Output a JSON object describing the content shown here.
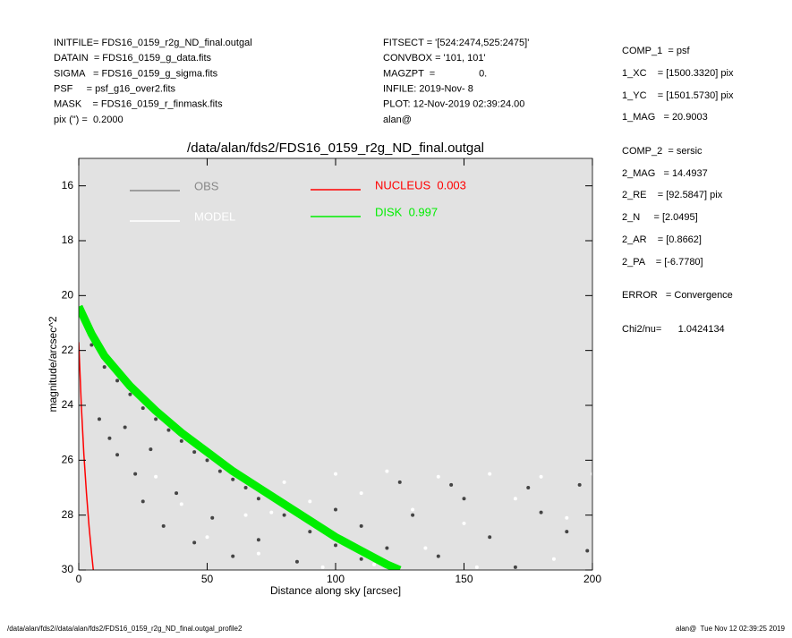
{
  "header": {
    "left": [
      "INITFILE= FDS16_0159_r2g_ND_final.outgal",
      "DATAIN  = FDS16_0159_g_data.fits",
      "SIGMA   = FDS16_0159_g_sigma.fits",
      "PSF     = psf_g16_over2.fits",
      "MASK    = FDS16_0159_r_finmask.fits",
      "pix (\") =  0.2000"
    ],
    "middle": [
      "FITSECT = '[524:2474,525:2475]'",
      "CONVBOX = '101, 101'",
      "MAGZPT  =                0.",
      "INFILE: 2019-Nov- 8",
      "PLOT: 12-Nov-2019 02:39:24.00",
      "alan@"
    ]
  },
  "side_panel": [
    "COMP_1  = psf",
    "1_XC    = [1500.3320] pix",
    "1_YC    = [1501.5730] pix",
    "1_MAG   = 20.9003",
    "COMP_2  = sersic",
    "2_MAG   = 14.4937",
    "2_RE    = [92.5847] pix",
    "2_N     = [2.0495]",
    "2_AR    = [0.8662]",
    "2_PA    = [-6.7780]",
    "ERROR   = Convergence",
    "Chi2/nu=      1.0424134"
  ],
  "footer": {
    "left": "/data/alan/fds2//data/alan/fds2/FDS16_0159_r2g_ND_final.outgal_profile2",
    "right": "alan@  Tue Nov 12 02:39:25 2019"
  },
  "chart_data": {
    "type": "scatter",
    "title": "/data/alan/fds2/FDS16_0159_r2g_ND_final.outgal",
    "x_label": "Distance along sky [arcsec]",
    "y_label": "magnitude/arcsec^2",
    "xlim": [
      0,
      200
    ],
    "ylim": [
      30,
      15
    ],
    "xticks": [
      0,
      50,
      100,
      150,
      200
    ],
    "yticks": [
      16,
      18,
      20,
      22,
      24,
      26,
      28,
      30
    ],
    "background": "#e2e2e2",
    "series": [
      {
        "name": "OBS",
        "color": "#444444",
        "legend_color": "#888888",
        "mode": "markers",
        "x": [
          5,
          10,
          15,
          20,
          25,
          30,
          35,
          40,
          45,
          50,
          55,
          60,
          65,
          70,
          80,
          90,
          100,
          110,
          8,
          12,
          15,
          18,
          22,
          25,
          28,
          33,
          38,
          45,
          52,
          60,
          70,
          85,
          100,
          110,
          120,
          130,
          140,
          150,
          160,
          170,
          180,
          190,
          198,
          125,
          145,
          175,
          195
        ],
        "values": [
          21.8,
          22.6,
          23.1,
          23.6,
          24.1,
          24.5,
          24.9,
          25.3,
          25.7,
          26.0,
          26.4,
          26.7,
          27.0,
          27.4,
          28.0,
          28.6,
          29.1,
          29.6,
          24.5,
          25.2,
          25.8,
          24.8,
          26.5,
          27.5,
          25.6,
          28.4,
          27.2,
          29.0,
          28.1,
          29.5,
          28.9,
          29.7,
          27.8,
          28.4,
          29.2,
          28.0,
          29.5,
          27.4,
          28.8,
          29.9,
          27.9,
          28.6,
          29.3,
          26.8,
          26.9,
          27.0,
          26.9
        ]
      },
      {
        "name": "MODEL",
        "color": "#ffffff",
        "mode": "markers",
        "x": [
          30,
          40,
          50,
          60,
          70,
          80,
          90,
          100,
          110,
          120,
          130,
          140,
          150,
          160,
          170,
          180,
          190,
          200,
          115,
          135,
          155,
          185,
          95,
          65,
          75
        ],
        "values": [
          26.6,
          27.6,
          28.8,
          26.4,
          29.4,
          26.8,
          27.5,
          26.5,
          27.2,
          26.4,
          27.8,
          26.6,
          28.3,
          26.5,
          27.4,
          26.6,
          28.1,
          26.5,
          29.8,
          29.2,
          29.9,
          29.6,
          29.9,
          28.0,
          27.9
        ]
      },
      {
        "name": "NUCLEUS  0.003",
        "color": "#ff0000",
        "mode": "line",
        "width": 1.5,
        "x": [
          0,
          1,
          2,
          3,
          4,
          5,
          6
        ],
        "values": [
          21.7,
          24.0,
          25.8,
          27.2,
          28.4,
          29.4,
          30.3
        ]
      },
      {
        "name": "DISK  0.997",
        "color": "#00ee00",
        "mode": "line",
        "width": 9,
        "x": [
          0,
          5,
          10,
          20,
          30,
          40,
          50,
          60,
          70,
          80,
          90,
          100,
          110,
          120,
          125
        ],
        "values": [
          20.4,
          21.4,
          22.2,
          23.3,
          24.2,
          25.0,
          25.7,
          26.4,
          27.0,
          27.6,
          28.2,
          28.8,
          29.3,
          29.8,
          30.0
        ]
      }
    ]
  }
}
